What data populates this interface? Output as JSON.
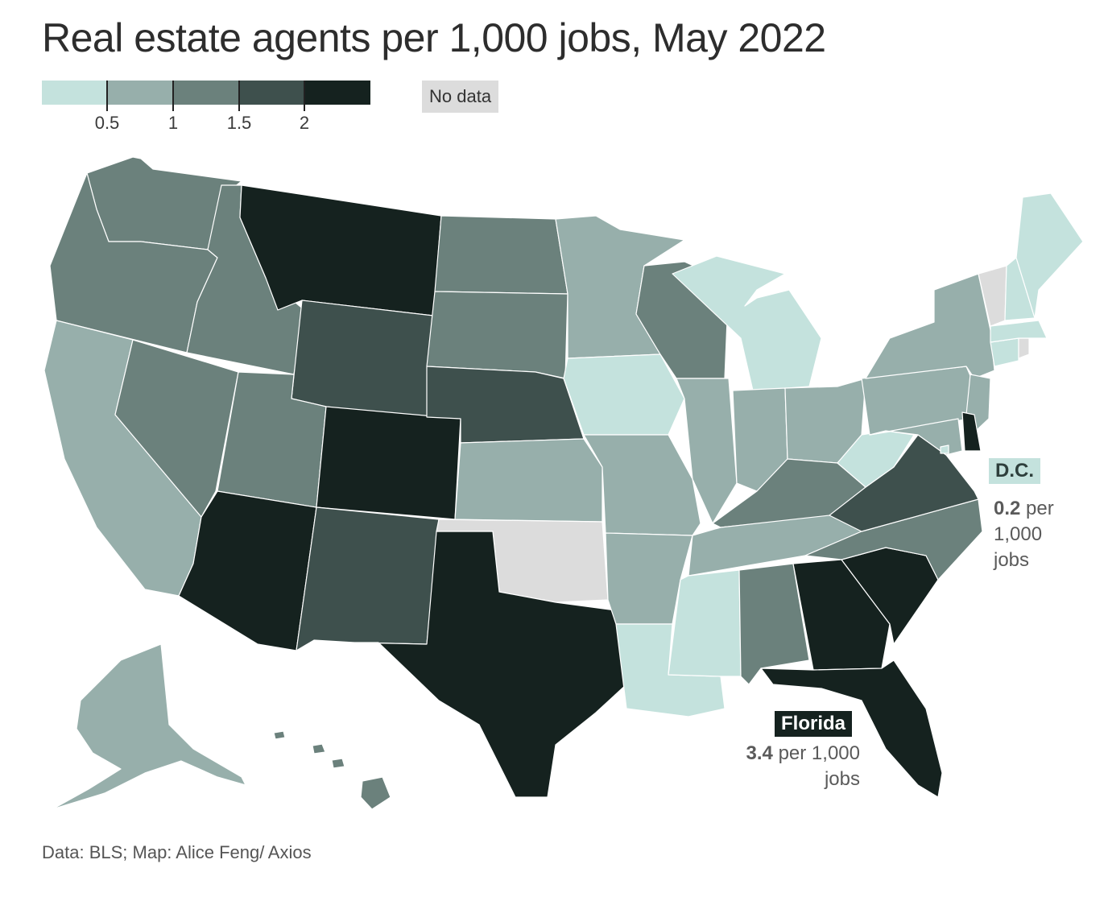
{
  "title": "Real estate agents per 1,000 jobs, May 2022",
  "legend": {
    "colors": [
      "#c4e2dd",
      "#97afab",
      "#6b817c",
      "#3e504d",
      "#15221f"
    ],
    "ticks": [
      "0.5",
      "1",
      "1.5",
      "2"
    ],
    "no_data_label": "No data",
    "no_data_color": "#dcdcdc"
  },
  "callouts": {
    "dc": {
      "name": "D.C.",
      "value": "0.2",
      "unit_line1": " per",
      "unit_line2": "1,000",
      "unit_line3": "jobs"
    },
    "florida": {
      "name": "Florida",
      "value": "3.4",
      "unit_line1": " per 1,000",
      "unit_line2": "jobs"
    }
  },
  "source": "Data: BLS; Map: Alice Feng/ Axios"
}
